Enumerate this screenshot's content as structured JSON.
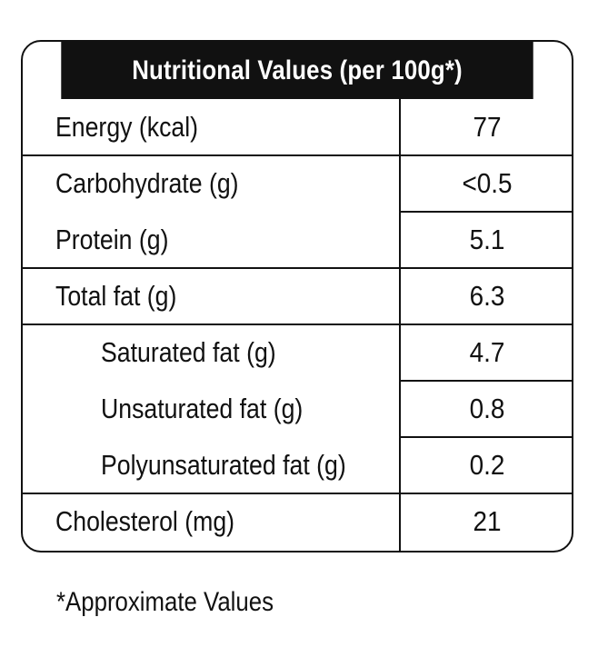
{
  "header": {
    "title": "Nutritional Values (per 100g*)"
  },
  "rows": [
    {
      "label": "Energy (kcal)",
      "value": "77"
    },
    {
      "label": "Carbohydrate (g)",
      "value": "<0.5"
    },
    {
      "label": "Protein (g)",
      "value": "5.1"
    },
    {
      "label": "Total fat (g)",
      "value": "6.3"
    },
    {
      "label": "Saturated fat (g)",
      "value": "4.7"
    },
    {
      "label": "Unsaturated fat (g)",
      "value": "0.8"
    },
    {
      "label": "Polyunsaturated fat (g)",
      "value": "0.2"
    },
    {
      "label": "Cholesterol (mg)",
      "value": "21"
    }
  ],
  "footnote": "*Approximate Values"
}
